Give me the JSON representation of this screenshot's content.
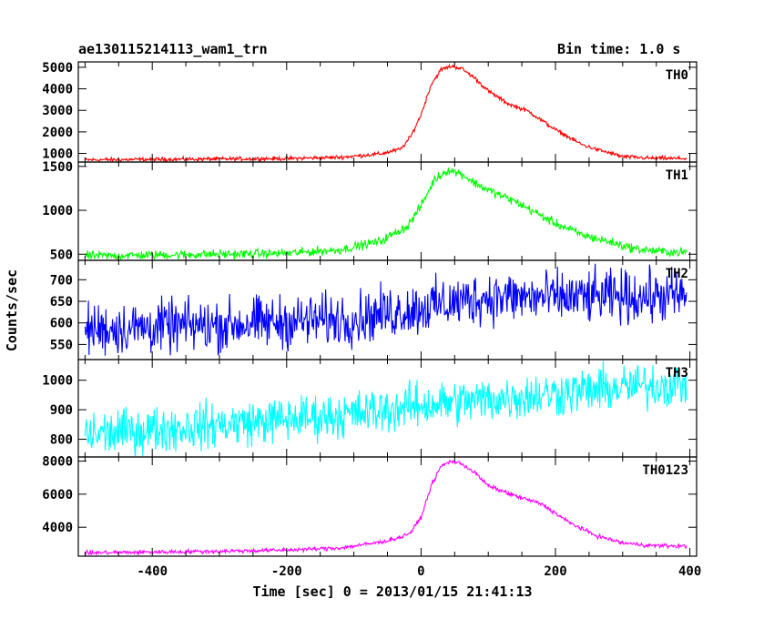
{
  "header": {
    "file_name": "ae130115214113_wam1_trn",
    "bin_time": "Bin time: 1.0 s"
  },
  "chart_data": {
    "type": "line",
    "title": "ae130115214113_wam1_trn",
    "subtitle": "Bin time: 1.0 s",
    "xlabel": "Time [sec] 0 = 2013/01/15 21:41:13",
    "ylabel": "Counts/sec",
    "xlim": [
      -510,
      410
    ],
    "x_ticks": [
      -400,
      -200,
      0,
      200,
      400
    ],
    "grid": false,
    "panels": [
      {
        "name": "TH0",
        "color": "#ff0000",
        "ylim": [
          600,
          5250
        ],
        "y_ticks": [
          1000,
          2000,
          3000,
          4000,
          5000
        ],
        "noise": 45,
        "x": [
          -500,
          -400,
          -300,
          -200,
          -120,
          -60,
          -30,
          -15,
          0,
          15,
          30,
          45,
          60,
          80,
          100,
          130,
          160,
          200,
          240,
          260,
          300,
          340,
          395
        ],
        "y": [
          700,
          720,
          740,
          760,
          820,
          980,
          1200,
          1800,
          2800,
          4200,
          4900,
          5050,
          4950,
          4500,
          3900,
          3300,
          2950,
          2100,
          1400,
          1200,
          850,
          780,
          760
        ]
      },
      {
        "name": "TH1",
        "color": "#00ff00",
        "ylim": [
          430,
          1550
        ],
        "y_ticks": [
          500,
          1000,
          1500
        ],
        "noise": 25,
        "x": [
          -500,
          -400,
          -300,
          -200,
          -120,
          -60,
          -20,
          0,
          20,
          40,
          60,
          80,
          100,
          140,
          200,
          240,
          280,
          320,
          360,
          395
        ],
        "y": [
          480,
          490,
          500,
          510,
          550,
          650,
          820,
          1050,
          1350,
          1460,
          1420,
          1310,
          1230,
          1100,
          850,
          720,
          640,
          560,
          530,
          520
        ]
      },
      {
        "name": "TH2",
        "color": "#0000ff",
        "ylim": [
          515,
          745
        ],
        "y_ticks": [
          550,
          600,
          650,
          700
        ],
        "noise": 30,
        "x": [
          -500,
          -300,
          -100,
          0,
          100,
          200,
          300,
          395
        ],
        "y": [
          585,
          595,
          610,
          635,
          660,
          658,
          660,
          662
        ]
      },
      {
        "name": "TH3",
        "color": "#00ffff",
        "ylim": [
          740,
          1070
        ],
        "y_ticks": [
          800,
          900,
          1000
        ],
        "noise": 38,
        "x": [
          -500,
          -300,
          -100,
          0,
          100,
          200,
          300,
          395
        ],
        "y": [
          815,
          850,
          885,
          915,
          935,
          955,
          975,
          990
        ]
      },
      {
        "name": "TH0123",
        "color": "#ff00ff",
        "ylim": [
          2250,
          8250
        ],
        "y_ticks": [
          4000,
          6000,
          8000
        ],
        "noise": 60,
        "x": [
          -500,
          -400,
          -300,
          -200,
          -120,
          -60,
          -30,
          -15,
          0,
          15,
          30,
          45,
          60,
          80,
          100,
          140,
          180,
          220,
          260,
          300,
          340,
          395
        ],
        "y": [
          2450,
          2500,
          2550,
          2620,
          2750,
          3100,
          3400,
          3700,
          4600,
          6500,
          7700,
          8000,
          7850,
          7300,
          6500,
          5900,
          5400,
          4300,
          3500,
          3050,
          2900,
          2850
        ]
      }
    ]
  }
}
